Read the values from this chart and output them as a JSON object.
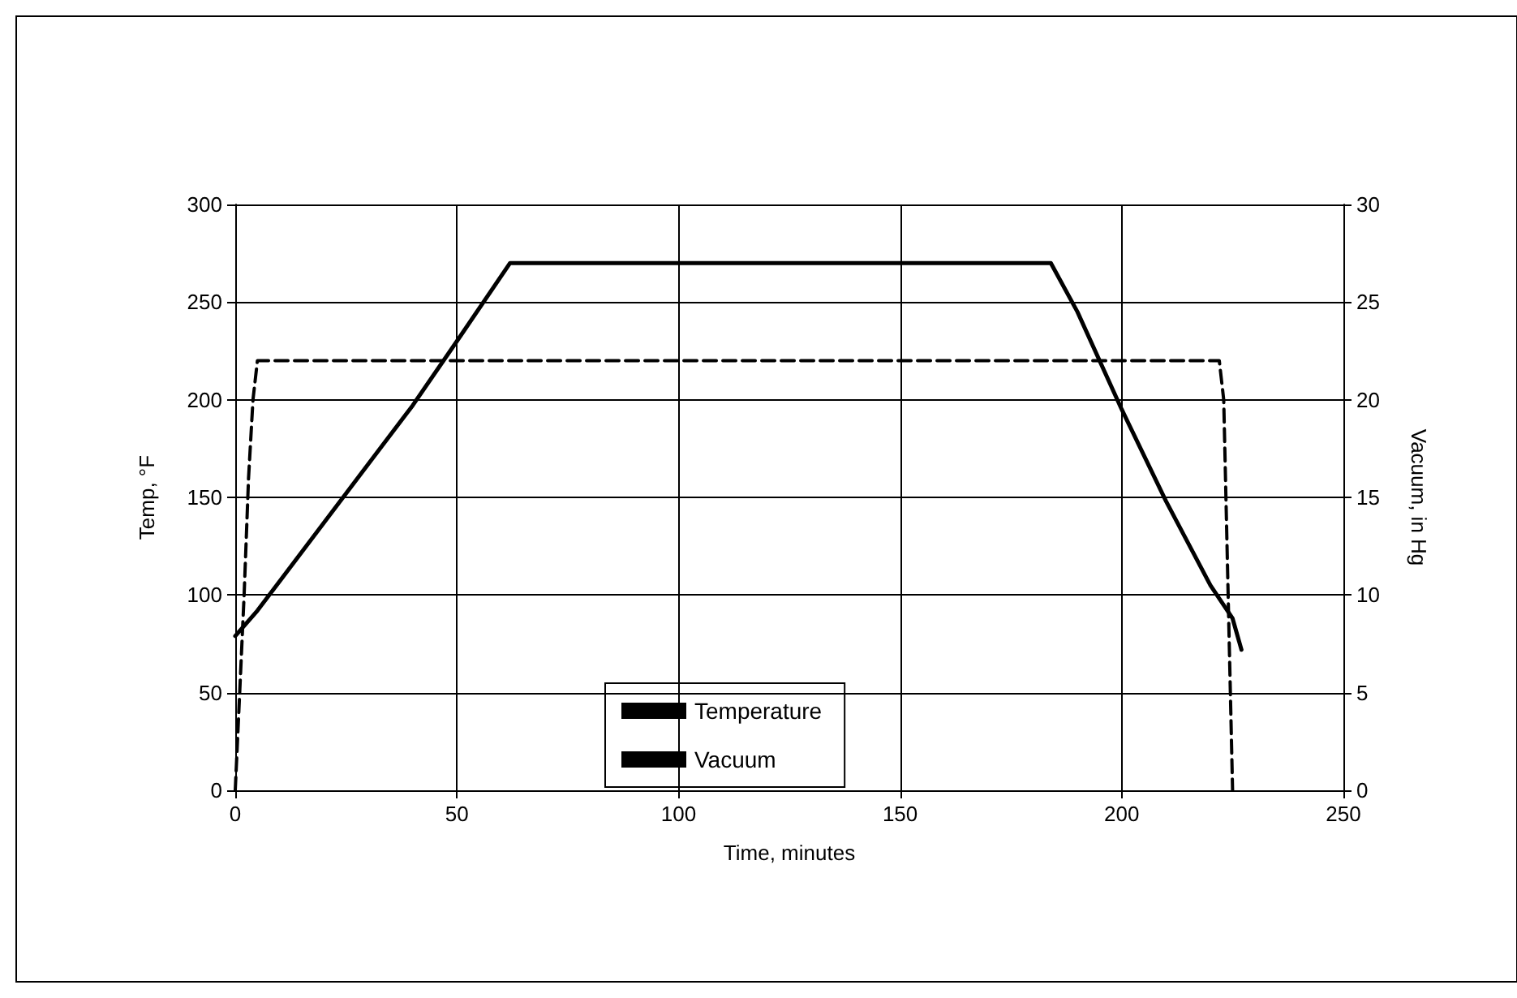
{
  "chart_data": {
    "type": "line",
    "xlabel": "Time, minutes",
    "ylabel": "Temp, °F",
    "y2label": "Vacuum, in Hg",
    "xlim": [
      0,
      250
    ],
    "xticks": [
      0,
      50,
      100,
      150,
      200,
      250
    ],
    "ylim": [
      0,
      300
    ],
    "yticks": [
      0,
      50,
      100,
      150,
      200,
      250,
      300
    ],
    "y2lim": [
      0,
      30
    ],
    "y2ticks": [
      0,
      5,
      10,
      15,
      20,
      25,
      30
    ],
    "grid": true,
    "legend": "bottom",
    "marker": "none",
    "series": [
      {
        "name": "Temperature",
        "color": "#000000",
        "line_style": "solid",
        "x": [
          0,
          5,
          10,
          20,
          30,
          40,
          50,
          62,
          184,
          190,
          200,
          210,
          220,
          225,
          227
        ],
        "values": [
          79,
          92,
          107,
          137,
          167,
          197,
          230,
          270,
          270,
          245,
          195,
          148,
          105,
          88,
          72
        ]
      },
      {
        "name": "Vacuum",
        "color": "#000000",
        "line_style": "dashed",
        "axis": "y2",
        "x": [
          0,
          1,
          2,
          3,
          4,
          5,
          222,
          223,
          224,
          225
        ],
        "values": [
          0,
          5,
          10,
          16,
          20,
          22,
          22,
          20,
          10,
          0
        ]
      }
    ]
  }
}
